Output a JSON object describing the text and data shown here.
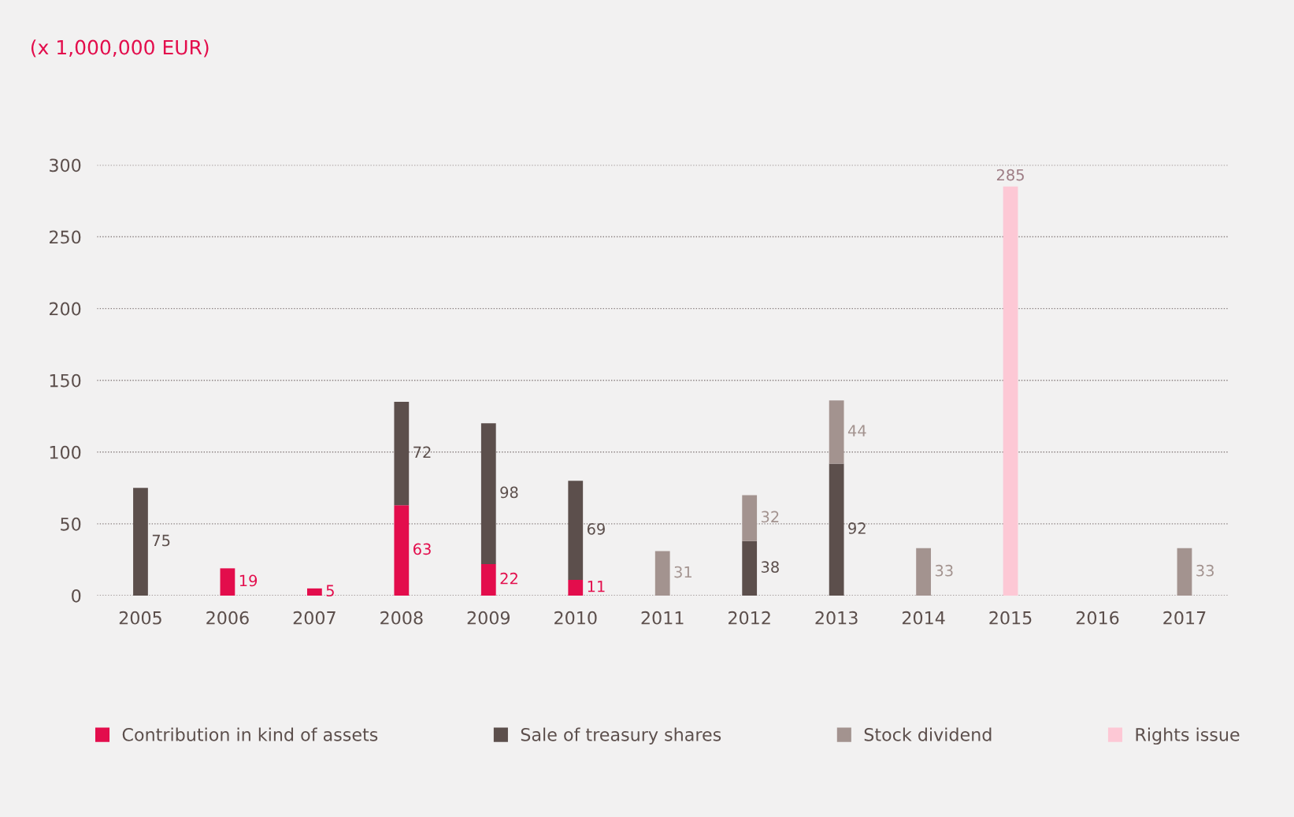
{
  "chart_data": {
    "type": "bar",
    "stacked": true,
    "title": "(x 1,000,000 EUR)",
    "categories": [
      "2005",
      "2006",
      "2007",
      "2008",
      "2009",
      "2010",
      "2011",
      "2012",
      "2013",
      "2014",
      "2015",
      "2016",
      "2017"
    ],
    "series": [
      {
        "name": "Contribution in kind of assets",
        "color": "#e30d4c",
        "values": [
          null,
          19,
          5,
          63,
          22,
          11,
          null,
          null,
          null,
          null,
          null,
          null,
          null
        ]
      },
      {
        "name": "Sale of treasury shares",
        "color": "#5c4f4c",
        "values": [
          75,
          null,
          null,
          72,
          98,
          69,
          null,
          38,
          92,
          null,
          null,
          null,
          null
        ]
      },
      {
        "name": "Stock dividend",
        "color": "#a3938f",
        "values": [
          null,
          null,
          null,
          null,
          null,
          null,
          31,
          32,
          44,
          33,
          null,
          null,
          33
        ]
      },
      {
        "name": "Rights issue",
        "color": "#fdc8d5",
        "values": [
          null,
          null,
          null,
          null,
          null,
          null,
          null,
          null,
          null,
          null,
          285,
          null,
          null
        ]
      }
    ],
    "ylim": [
      0,
      300
    ],
    "yticks": [
      0,
      50,
      100,
      150,
      200,
      250,
      300
    ],
    "grid": "y",
    "data_labels": true,
    "legend": "bottom"
  }
}
